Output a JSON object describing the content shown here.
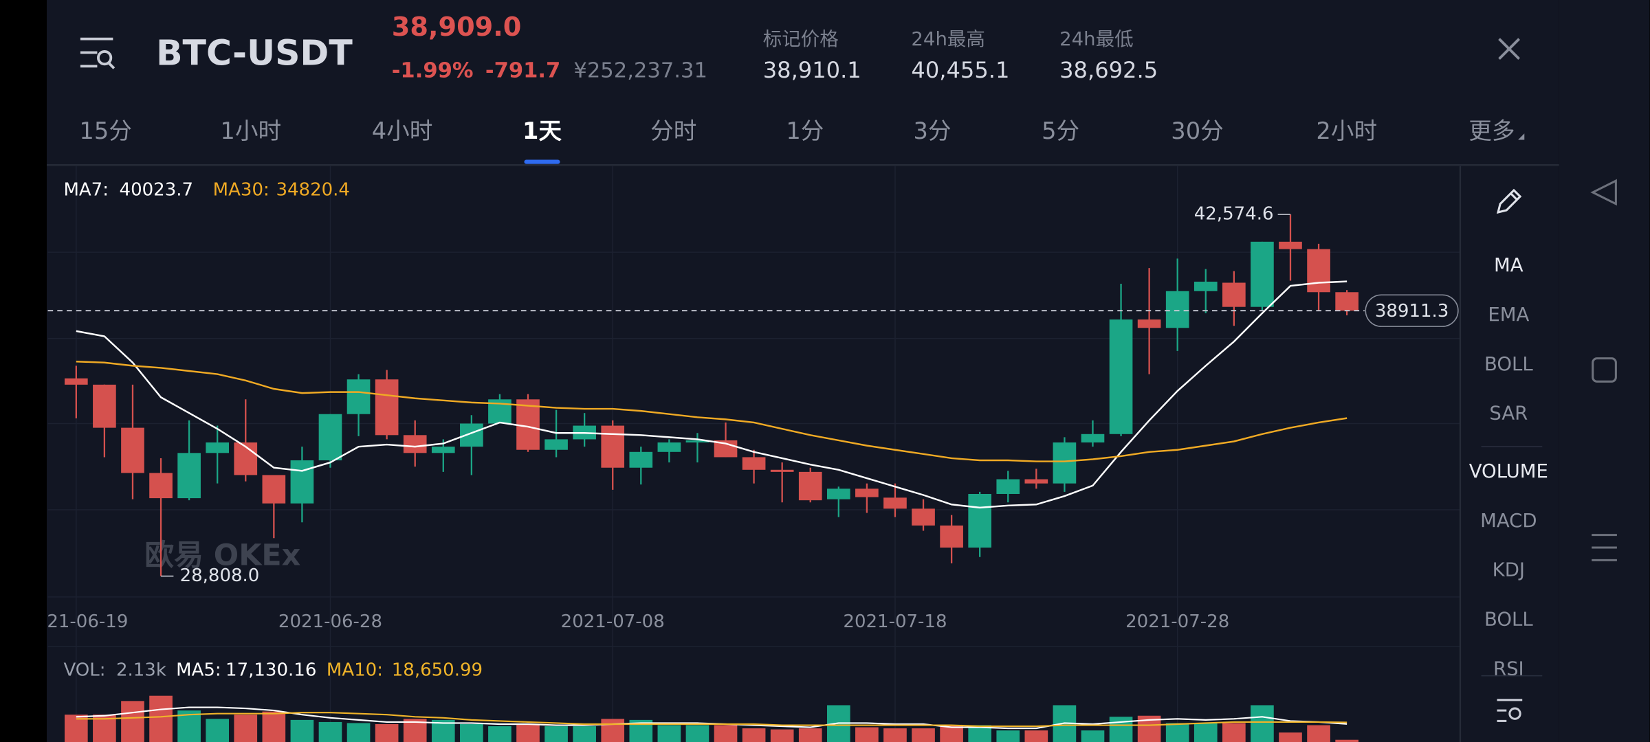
{
  "header": {
    "pair": "BTC-USDT",
    "price": "38,909.0",
    "change_pct": "-1.99%",
    "change": "-791.7",
    "cny_price": "¥252,237.31",
    "stats": [
      {
        "label": "标记价格",
        "value": "38,910.1"
      },
      {
        "label": "24h最高",
        "value": "40,455.1"
      },
      {
        "label": "24h最低",
        "value": "38,692.5"
      }
    ]
  },
  "tabs": {
    "items": [
      "15分",
      "1小时",
      "4小时",
      "1天",
      "分时",
      "1分",
      "3分",
      "5分",
      "30分",
      "2小时",
      "更多"
    ],
    "active": 3
  },
  "side_menu": [
    "MA",
    "EMA",
    "BOLL",
    "SAR",
    "VOLUME",
    "MACD",
    "KDJ",
    "BOLL",
    "RSI"
  ],
  "chart_data": [
    {
      "type": "candlestick",
      "x": [
        "2021-06-19",
        "2021-06-20",
        "2021-06-21",
        "2021-06-22",
        "2021-06-23",
        "2021-06-24",
        "2021-06-25",
        "2021-06-26",
        "2021-06-27",
        "2021-06-28",
        "2021-06-29",
        "2021-06-30",
        "2021-07-01",
        "2021-07-02",
        "2021-07-03",
        "2021-07-04",
        "2021-07-05",
        "2021-07-06",
        "2021-07-07",
        "2021-07-08",
        "2021-07-09",
        "2021-07-10",
        "2021-07-11",
        "2021-07-12",
        "2021-07-13",
        "2021-07-14",
        "2021-07-15",
        "2021-07-16",
        "2021-07-17",
        "2021-07-18",
        "2021-07-19",
        "2021-07-20",
        "2021-07-21",
        "2021-07-22",
        "2021-07-23",
        "2021-07-24",
        "2021-07-25",
        "2021-07-26",
        "2021-07-27",
        "2021-07-28",
        "2021-07-29",
        "2021-07-30",
        "2021-07-31",
        "2021-08-01",
        "2021-08-02",
        "2021-08-03"
      ],
      "open": [
        36335,
        36095,
        34455,
        32735,
        31775,
        33495,
        33895,
        32655,
        31575,
        33215,
        34975,
        36295,
        34175,
        33495,
        33735,
        34615,
        35535,
        33615,
        34015,
        34535,
        32935,
        33535,
        33895,
        33975,
        33335,
        32855,
        32775,
        31735,
        32135,
        31795,
        31375,
        30735,
        29895,
        31935,
        32495,
        32335,
        33895,
        34215,
        38575,
        38255,
        39655,
        39975,
        39055,
        41535,
        41255,
        39615
      ],
      "high": [
        36815,
        36100,
        36095,
        33295,
        34735,
        34535,
        35535,
        32655,
        33735,
        34975,
        36495,
        36655,
        34735,
        34015,
        34935,
        35735,
        35735,
        35135,
        35015,
        34735,
        33735,
        34015,
        34255,
        34655,
        33615,
        33135,
        32935,
        32215,
        32335,
        32335,
        31735,
        31135,
        32015,
        32815,
        32895,
        34095,
        34735,
        39935,
        40535,
        40895,
        40495,
        40415,
        41535,
        42574.6,
        41455,
        39695
      ],
      "low": [
        34815,
        33335,
        31735,
        28808,
        31695,
        32335,
        32415,
        30255,
        30855,
        32935,
        34135,
        34015,
        32975,
        32775,
        32655,
        34615,
        33535,
        33335,
        33735,
        32095,
        32295,
        33135,
        33135,
        33335,
        32335,
        31615,
        31615,
        31055,
        31215,
        31055,
        30535,
        29295,
        29535,
        31615,
        32135,
        32015,
        33735,
        34135,
        36495,
        37375,
        38815,
        38335,
        38935,
        40055,
        38895,
        38735
      ],
      "close": [
        36095,
        34455,
        32735,
        31775,
        33495,
        33895,
        32655,
        31575,
        33215,
        34975,
        36295,
        34175,
        33495,
        33735,
        34615,
        35535,
        33615,
        34015,
        34535,
        32935,
        33535,
        33895,
        33975,
        33335,
        32855,
        32775,
        31695,
        32135,
        31815,
        31375,
        30735,
        29895,
        31935,
        32495,
        32335,
        33895,
        34215,
        38575,
        38255,
        39655,
        40015,
        39055,
        41535,
        41255,
        39615,
        38911.3
      ],
      "up_color": "#1ba686",
      "down_color": "#d5514e",
      "series": [
        {
          "name": "MA7:",
          "color": "#ffffff",
          "values": [
            38135,
            37935,
            36935,
            35615,
            35015,
            34415,
            33735,
            32935,
            32815,
            33135,
            33735,
            33815,
            33735,
            33855,
            34255,
            34655,
            34495,
            34255,
            34255,
            34215,
            34175,
            34095,
            34015,
            33855,
            33535,
            33295,
            33055,
            32855,
            32535,
            32215,
            31895,
            31535,
            31415,
            31495,
            31535,
            31855,
            32255,
            33535,
            34735,
            35855,
            36815,
            37735,
            38815,
            39855,
            39975,
            40023.7
          ]
        },
        {
          "name": "MA30:",
          "color": "#f0aa24",
          "values": [
            36975,
            36935,
            36815,
            36735,
            36615,
            36495,
            36255,
            35935,
            35775,
            35815,
            35815,
            35695,
            35575,
            35495,
            35415,
            35375,
            35295,
            35215,
            35175,
            35175,
            35095,
            34975,
            34855,
            34775,
            34655,
            34415,
            34175,
            33975,
            33775,
            33615,
            33455,
            33295,
            33215,
            33215,
            33175,
            33175,
            33255,
            33375,
            33535,
            33615,
            33775,
            33935,
            34215,
            34455,
            34655,
            34820.4
          ]
        }
      ],
      "ylim": [
        28015,
        44335
      ],
      "xticks": [
        "2021-06-19",
        "2021-06-28",
        "2021-07-08",
        "2021-07-18",
        "2021-07-28"
      ],
      "last_price": 38911.3,
      "annotations": [
        {
          "x": "2021-08-01",
          "value": 42574.6,
          "label": "42,574.6"
        },
        {
          "x": "2021-06-22",
          "value": 28808,
          "label": "28,808.0"
        }
      ],
      "watermark": "欧易 OKEx"
    },
    {
      "type": "bar",
      "name": "VOL:",
      "values": [
        26000,
        26000,
        39000,
        44000,
        30000,
        22000,
        26000,
        29000,
        21000,
        19000,
        18000,
        17000,
        22000,
        21000,
        17000,
        15000,
        17000,
        15000,
        15000,
        22000,
        21000,
        16000,
        16000,
        16000,
        13000,
        12000,
        13000,
        35000,
        14000,
        13000,
        13000,
        16000,
        16000,
        11000,
        11000,
        35000,
        11000,
        24000,
        25000,
        18000,
        18000,
        18000,
        35000,
        9000,
        16000,
        2130
      ],
      "last_label": "2.13k",
      "series": [
        {
          "name": "MA5:",
          "color": "#ffffff",
          "last_label": "17,130.16",
          "values": [
            24000,
            25000,
            28000,
            31000,
            33000,
            33000,
            32000,
            30000,
            26000,
            23000,
            21000,
            19000,
            19000,
            18000,
            18000,
            17000,
            17000,
            16000,
            16000,
            17000,
            18000,
            18000,
            18000,
            17000,
            16000,
            15000,
            14000,
            18000,
            18000,
            17000,
            17000,
            14000,
            14000,
            13000,
            13000,
            18000,
            17000,
            19000,
            21000,
            22000,
            21000,
            22000,
            24000,
            20000,
            19000,
            17130.16
          ]
        },
        {
          "name": "MA10:",
          "color": "#f0b429",
          "last_label": "18,650.99",
          "values": [
            22000,
            22000,
            23000,
            24000,
            26000,
            27000,
            27000,
            27000,
            28000,
            28000,
            27000,
            26000,
            24000,
            23000,
            21000,
            20000,
            19000,
            18000,
            17000,
            17000,
            17000,
            17000,
            17000,
            17000,
            17000,
            16000,
            16000,
            16000,
            16000,
            16000,
            16000,
            16000,
            15000,
            15000,
            15000,
            16000,
            16000,
            16000,
            16000,
            17000,
            18000,
            19000,
            19000,
            19000,
            19000,
            18650.99
          ]
        }
      ],
      "ylim": [
        0,
        51000
      ]
    }
  ]
}
